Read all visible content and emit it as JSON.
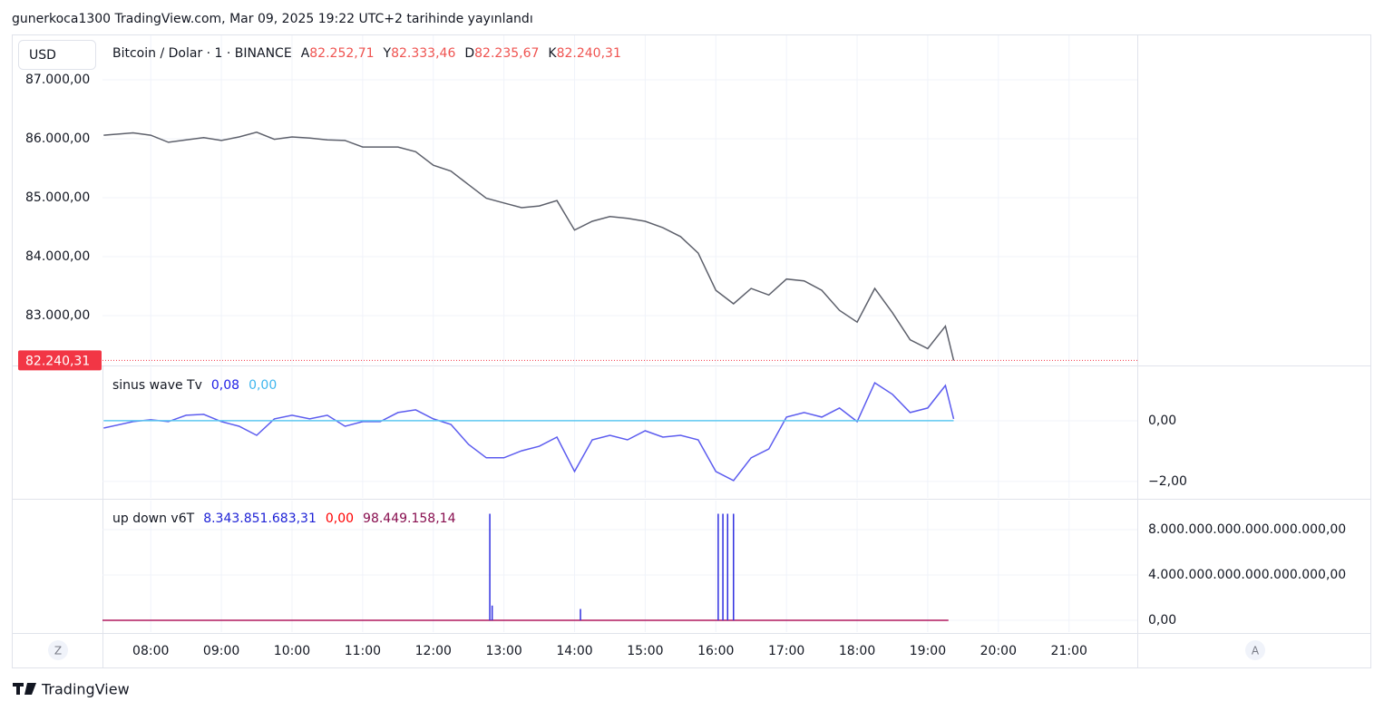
{
  "header": "gunerkoca1300 TradingView.com, Mar 09, 2025 19:22 UTC+2 tarihinde yayınlandı",
  "currency": "USD",
  "footer": "TradingView",
  "scale_buttons": [
    "Z",
    "A"
  ],
  "time_axis": {
    "xlim": [
      "07:19",
      "21:58"
    ],
    "xticks": [
      "08:00",
      "09:00",
      "10:00",
      "11:00",
      "12:00",
      "13:00",
      "14:00",
      "15:00",
      "16:00",
      "17:00",
      "18:00",
      "19:00",
      "20:00",
      "21:00"
    ],
    "grid": true
  },
  "chart_data": [
    {
      "type": "line",
      "title": "Bitcoin / Dolar · 1 · BINANCE",
      "axis_side": "left",
      "legend_values": [
        {
          "label": "A",
          "value": "82.252,71",
          "color": "#ef5350"
        },
        {
          "label": "Y",
          "value": "82.333,46",
          "color": "#ef5350"
        },
        {
          "label": "D",
          "value": "82.235,67",
          "color": "#ef5350"
        },
        {
          "label": "K",
          "value": "82.240,31",
          "color": "#ef5350"
        }
      ],
      "x": [
        "07:20",
        "07:45",
        "08:00",
        "08:15",
        "08:30",
        "08:45",
        "09:00",
        "09:15",
        "09:30",
        "09:45",
        "10:00",
        "10:15",
        "10:30",
        "10:45",
        "11:00",
        "11:15",
        "11:30",
        "11:45",
        "12:00",
        "12:15",
        "12:30",
        "12:45",
        "13:00",
        "13:15",
        "13:30",
        "13:45",
        "14:00",
        "14:15",
        "14:30",
        "14:45",
        "15:00",
        "15:15",
        "15:30",
        "15:45",
        "16:00",
        "16:15",
        "16:30",
        "16:45",
        "17:00",
        "17:15",
        "17:30",
        "17:45",
        "18:00",
        "18:15",
        "18:30",
        "18:45",
        "19:00",
        "19:15",
        "19:22"
      ],
      "series": [
        {
          "color": "#5d606b",
          "values": [
            86060,
            86100,
            86060,
            85940,
            85980,
            86020,
            85970,
            86030,
            86110,
            85990,
            86030,
            86010,
            85980,
            85970,
            85860,
            85860,
            85860,
            85780,
            85550,
            85450,
            85220,
            84990,
            84910,
            84830,
            84860,
            84950,
            84450,
            84600,
            84680,
            84650,
            84600,
            84490,
            84340,
            84060,
            83430,
            83200,
            83460,
            83350,
            83620,
            83590,
            83430,
            83090,
            82890,
            83460,
            83050,
            82590,
            82440,
            82820,
            82240
          ]
        }
      ],
      "last_price": {
        "value": 82240.31,
        "label": "82.240,31",
        "color": "#f23645"
      },
      "ylim": [
        82154,
        87769
      ],
      "yticks": [
        {
          "value": 83000,
          "label": "83.000,00"
        },
        {
          "value": 84000,
          "label": "84.000,00"
        },
        {
          "value": 85000,
          "label": "85.000,00"
        },
        {
          "value": 86000,
          "label": "86.000,00"
        },
        {
          "value": 87000,
          "label": "87.000,00"
        }
      ],
      "grid": true
    },
    {
      "type": "line",
      "title": "sinus wave Tv",
      "axis_side": "right",
      "legend_values": [
        {
          "value": "0,08",
          "color": "#1e1ee6"
        },
        {
          "value": "0,00",
          "color": "#3fb6ee"
        }
      ],
      "x": [
        "07:20",
        "07:45",
        "08:00",
        "08:15",
        "08:30",
        "08:45",
        "09:00",
        "09:15",
        "09:30",
        "09:45",
        "10:00",
        "10:15",
        "10:30",
        "10:45",
        "11:00",
        "11:15",
        "11:30",
        "11:45",
        "12:00",
        "12:15",
        "12:30",
        "12:45",
        "13:00",
        "13:15",
        "13:30",
        "13:45",
        "14:00",
        "14:15",
        "14:30",
        "14:45",
        "15:00",
        "15:15",
        "15:30",
        "15:45",
        "16:00",
        "16:15",
        "16:30",
        "16:45",
        "17:00",
        "17:15",
        "17:30",
        "17:45",
        "18:00",
        "18:15",
        "18:30",
        "18:45",
        "19:00",
        "19:15",
        "19:22"
      ],
      "series": [
        {
          "color": "#5c5cef",
          "values": [
            -0.24,
            -0.03,
            0.03,
            -0.03,
            0.18,
            0.21,
            -0.03,
            -0.18,
            -0.48,
            0.06,
            0.18,
            0.06,
            0.18,
            -0.18,
            -0.03,
            -0.03,
            0.27,
            0.36,
            0.06,
            -0.12,
            -0.78,
            -1.22,
            -1.22,
            -0.99,
            -0.84,
            -0.54,
            -1.67,
            -0.63,
            -0.48,
            -0.63,
            -0.33,
            -0.54,
            -0.48,
            -0.63,
            -1.67,
            -1.97,
            -1.22,
            -0.93,
            0.12,
            0.27,
            0.12,
            0.42,
            -0.03,
            1.25,
            0.87,
            0.27,
            0.42,
            1.16,
            0.06
          ]
        },
        {
          "color": "#5ec8f0",
          "values": [
            0,
            0,
            0,
            0,
            0,
            0,
            0,
            0,
            0,
            0,
            0,
            0,
            0,
            0,
            0,
            0,
            0,
            0,
            0,
            0,
            0,
            0,
            0,
            0,
            0,
            0,
            0,
            0,
            0,
            0,
            0,
            0,
            0,
            0,
            0,
            0,
            0,
            0,
            0,
            0,
            0,
            0,
            0,
            0,
            0,
            0,
            0,
            0,
            0
          ]
        }
      ],
      "ylim": [
        -2.57,
        1.79
      ],
      "yticks": [
        {
          "value": -2,
          "label": "−2,00"
        },
        {
          "value": 0,
          "label": "0,00"
        }
      ],
      "grid": true
    },
    {
      "type": "bar",
      "title": "up down v6T",
      "axis_side": "right",
      "legend_values": [
        {
          "value": "8.343.851.683,31",
          "color": "#1e22d6"
        },
        {
          "value": "0,00",
          "color": "#ff0000"
        },
        {
          "value": "98.449.158,14",
          "color": "#880e4f"
        }
      ],
      "x": [
        "12:48",
        "12:50",
        "14:05",
        "16:02",
        "16:06",
        "16:10",
        "16:15"
      ],
      "series": [
        {
          "color": "#3030e0",
          "values": [
            9.4e+18,
            1.3e+18,
            1e+18,
            9.4e+18,
            9.4e+18,
            9.4e+18,
            9.4e+18
          ]
        }
      ],
      "baseline_color": "#b0185f",
      "ylim": [
        -1.12e+18,
        1.064e+19
      ],
      "yticks": [
        {
          "value": 0,
          "label": "0,00"
        },
        {
          "value": 4e+18,
          "label": "4.000.000.000.000.000.000,00"
        },
        {
          "value": 8e+18,
          "label": "8.000.000.000.000.000.000,00"
        }
      ],
      "grid": true
    }
  ]
}
